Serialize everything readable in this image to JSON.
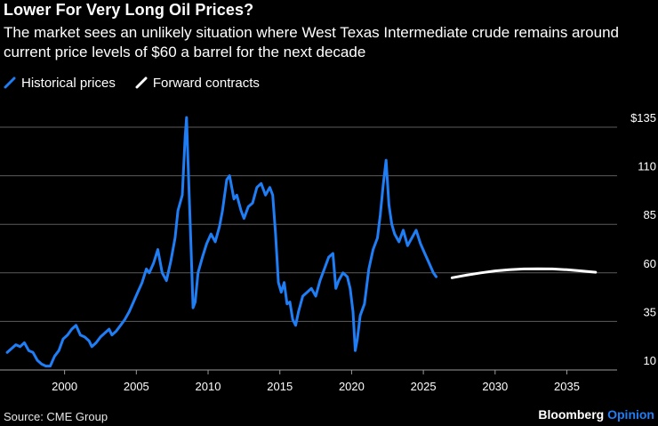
{
  "title": "Lower For Very Long Oil Prices?",
  "subtitle": "The market sees an unlikely situation where West Texas Intermediate crude remains around current price levels of $60 a barrel for the next decade",
  "source": "Source: CME Group",
  "brand": {
    "name": "Bloomberg",
    "suffix": "Opinion"
  },
  "colors": {
    "historical": "#1f7ef5",
    "forward": "#ffffff",
    "grid": "#5b5b5b",
    "background": "#000000"
  },
  "chart_data": {
    "type": "line",
    "title": "Lower For Very Long Oil Prices?",
    "xlabel": "",
    "ylabel": "",
    "xlim": [
      1995.5,
      2038.5
    ],
    "ylim": [
      10,
      135
    ],
    "y_ticks": [
      10,
      35,
      60,
      85,
      110,
      135
    ],
    "y_tick_labels": [
      "10",
      "35",
      "60",
      "85",
      "110",
      "$135"
    ],
    "x_ticks": [
      2000,
      2005,
      2010,
      2015,
      2020,
      2025,
      2030,
      2035
    ],
    "x_tick_labels": [
      "2000",
      "2005",
      "2010",
      "2015",
      "2020",
      "2025",
      "2030",
      "2035"
    ],
    "grid": true,
    "legend_position": "top-left",
    "series": [
      {
        "name": "Historical prices",
        "color": "#1f7ef5",
        "x": [
          1996.0,
          1996.3,
          1996.6,
          1996.9,
          1997.2,
          1997.5,
          1997.8,
          1998.1,
          1998.4,
          1998.7,
          1999.0,
          1999.3,
          1999.6,
          1999.9,
          2000.2,
          2000.5,
          2000.8,
          2001.1,
          2001.4,
          2001.7,
          2001.9,
          2002.2,
          2002.5,
          2002.8,
          2003.1,
          2003.3,
          2003.6,
          2003.9,
          2004.2,
          2004.5,
          2004.8,
          2005.1,
          2005.4,
          2005.7,
          2005.9,
          2006.2,
          2006.5,
          2006.8,
          2007.1,
          2007.4,
          2007.7,
          2007.9,
          2008.2,
          2008.4,
          2008.5,
          2008.6,
          2008.8,
          2008.95,
          2009.1,
          2009.3,
          2009.6,
          2009.9,
          2010.2,
          2010.5,
          2010.8,
          2011.0,
          2011.3,
          2011.5,
          2011.8,
          2012.0,
          2012.3,
          2012.5,
          2012.8,
          2013.1,
          2013.4,
          2013.7,
          2014.0,
          2014.3,
          2014.5,
          2014.7,
          2014.9,
          2015.1,
          2015.3,
          2015.5,
          2015.7,
          2015.9,
          2016.1,
          2016.3,
          2016.6,
          2016.9,
          2017.2,
          2017.5,
          2017.8,
          2018.1,
          2018.4,
          2018.7,
          2018.9,
          2019.1,
          2019.4,
          2019.7,
          2019.9,
          2020.1,
          2020.25,
          2020.4,
          2020.6,
          2020.9,
          2021.2,
          2021.5,
          2021.8,
          2022.0,
          2022.2,
          2022.4,
          2022.6,
          2022.8,
          2023.0,
          2023.3,
          2023.6,
          2023.9,
          2024.2,
          2024.5,
          2024.8,
          2025.1,
          2025.4,
          2025.7,
          2025.9
        ],
        "values": [
          19,
          21,
          23,
          22,
          24,
          20,
          19,
          15,
          13,
          12,
          12,
          17,
          20,
          26,
          28,
          31,
          33,
          28,
          27,
          25,
          22,
          24,
          27,
          29,
          31,
          28,
          30,
          33,
          36,
          40,
          45,
          50,
          55,
          62,
          60,
          65,
          72,
          60,
          56,
          66,
          78,
          92,
          100,
          130,
          140,
          118,
          75,
          42,
          45,
          60,
          68,
          75,
          80,
          76,
          84,
          92,
          108,
          110,
          98,
          100,
          92,
          88,
          94,
          96,
          104,
          106,
          100,
          104,
          100,
          80,
          55,
          50,
          55,
          44,
          45,
          36,
          33,
          40,
          48,
          50,
          52,
          48,
          56,
          62,
          68,
          70,
          52,
          56,
          60,
          58,
          52,
          40,
          20,
          26,
          38,
          44,
          62,
          72,
          78,
          90,
          105,
          118,
          95,
          85,
          80,
          76,
          82,
          74,
          78,
          82,
          75,
          70,
          65,
          60,
          58
        ]
      },
      {
        "name": "Forward contracts",
        "color": "#ffffff",
        "x": [
          2027.0,
          2028.0,
          2029.0,
          2030.0,
          2031.0,
          2032.0,
          2033.0,
          2034.0,
          2035.0,
          2036.0,
          2037.0
        ],
        "values": [
          57.5,
          58.8,
          60.0,
          61.0,
          61.6,
          62.0,
          62.1,
          62.0,
          61.6,
          61.0,
          60.3
        ]
      }
    ]
  }
}
